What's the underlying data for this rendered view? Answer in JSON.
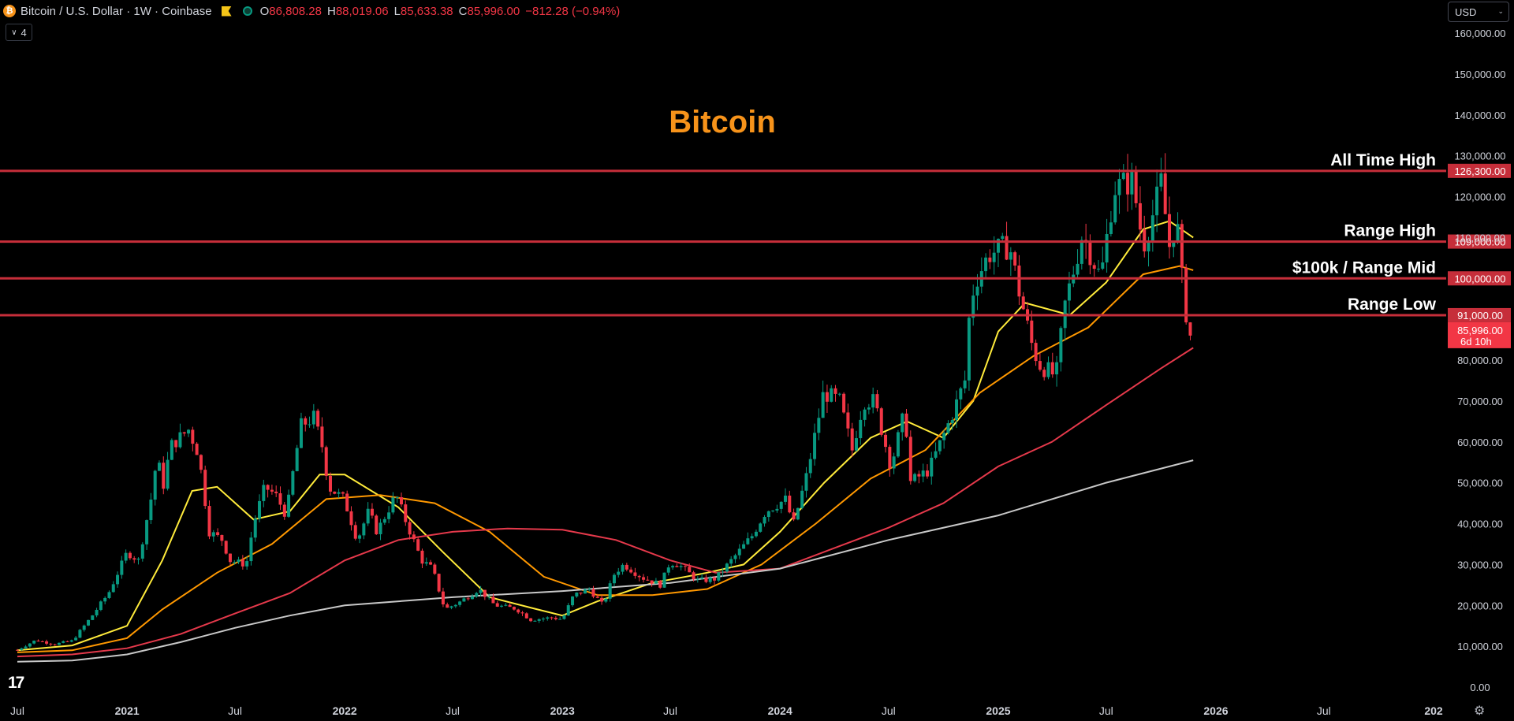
{
  "header": {
    "symbol": "Bitcoin / U.S. Dollar · 1W · Coinbase",
    "symbol_icon": "bitcoin-icon",
    "flag_icon": "flag-icon",
    "status_icon": "market-status-icon",
    "ohlc": [
      {
        "key": "O",
        "value": "86,808.28"
      },
      {
        "key": "H",
        "value": "88,019.06"
      },
      {
        "key": "L",
        "value": "85,633.38"
      },
      {
        "key": "C",
        "value": "85,996.00"
      }
    ],
    "change": "−812.28 (−0.94%)",
    "indicator_count": "4",
    "indicator_toggle_icon": "chevron-down-icon"
  },
  "currency": {
    "label": "USD",
    "icon": "chevron-down-icon"
  },
  "colors": {
    "up": "#089981",
    "down": "#f23645",
    "title": "#f7931a",
    "level": "#c62e3a"
  },
  "chart_data": {
    "type": "candlestick",
    "title": "Bitcoin",
    "ylim": [
      0,
      165000
    ],
    "y_ticks": [
      {
        "value": 0,
        "label": "0.00"
      },
      {
        "value": 10000,
        "label": "10,000.00"
      },
      {
        "value": 20000,
        "label": "20,000.00"
      },
      {
        "value": 30000,
        "label": "30,000.00"
      },
      {
        "value": 40000,
        "label": "40,000.00"
      },
      {
        "value": 50000,
        "label": "50,000.00"
      },
      {
        "value": 60000,
        "label": "60,000.00"
      },
      {
        "value": 70000,
        "label": "70,000.00"
      },
      {
        "value": 80000,
        "label": "80,000.00"
      },
      {
        "value": 110000,
        "label": "110,000.00"
      },
      {
        "value": 120000,
        "label": "120,000.00"
      },
      {
        "value": 130000,
        "label": "130,000.00"
      },
      {
        "value": 140000,
        "label": "140,000.00"
      },
      {
        "value": 150000,
        "label": "150,000.00"
      },
      {
        "value": 160000,
        "label": "160,000.00"
      }
    ],
    "x_ticks": [
      {
        "date": "2020-07-01",
        "label": "Jul",
        "bold": false
      },
      {
        "date": "2021-01-01",
        "label": "2021",
        "bold": true
      },
      {
        "date": "2021-07-01",
        "label": "Jul",
        "bold": false
      },
      {
        "date": "2022-01-01",
        "label": "2022",
        "bold": true
      },
      {
        "date": "2022-07-01",
        "label": "Jul",
        "bold": false
      },
      {
        "date": "2023-01-01",
        "label": "2023",
        "bold": true
      },
      {
        "date": "2023-07-01",
        "label": "Jul",
        "bold": false
      },
      {
        "date": "2024-01-01",
        "label": "2024",
        "bold": true
      },
      {
        "date": "2024-07-01",
        "label": "Jul",
        "bold": false
      },
      {
        "date": "2025-01-01",
        "label": "2025",
        "bold": true
      },
      {
        "date": "2025-07-01",
        "label": "Jul",
        "bold": false
      },
      {
        "date": "2026-01-01",
        "label": "2026",
        "bold": true
      },
      {
        "date": "2026-07-01",
        "label": "Jul",
        "bold": false
      },
      {
        "date": "2027-01-01",
        "label": "202",
        "bold": true
      }
    ],
    "x_range": [
      "2020-07-01",
      "2027-01-01"
    ],
    "levels": [
      {
        "name": "All Time High",
        "value": 126300,
        "label": "126,300.00"
      },
      {
        "name": "Range High",
        "value": 109000,
        "label": "109,000.00"
      },
      {
        "name": "$100k / Range Mid",
        "value": 100000,
        "label": "100,000.00"
      },
      {
        "name": "Range Low",
        "value": 91000,
        "label": "91,000.00"
      }
    ],
    "last_price": {
      "value": 85996,
      "label": "85,996.00",
      "countdown": "6d 10h"
    },
    "price_path": [
      [
        "2020-07-01",
        9100
      ],
      [
        "2020-08-01",
        11500
      ],
      [
        "2020-09-01",
        10500
      ],
      [
        "2020-10-01",
        11300
      ],
      [
        "2020-11-01",
        17000
      ],
      [
        "2020-12-01",
        23000
      ],
      [
        "2021-01-01",
        33000
      ],
      [
        "2021-01-20",
        31000
      ],
      [
        "2021-02-10",
        46000
      ],
      [
        "2021-02-21",
        57000
      ],
      [
        "2021-03-01",
        48000
      ],
      [
        "2021-03-15",
        59000
      ],
      [
        "2021-04-14",
        63000
      ],
      [
        "2021-05-01",
        57000
      ],
      [
        "2021-05-19",
        38000
      ],
      [
        "2021-06-10",
        36000
      ],
      [
        "2021-06-22",
        31000
      ],
      [
        "2021-07-20",
        30000
      ],
      [
        "2021-08-01",
        40000
      ],
      [
        "2021-08-20",
        49000
      ],
      [
        "2021-09-07",
        47000
      ],
      [
        "2021-09-25",
        42000
      ],
      [
        "2021-10-10",
        56000
      ],
      [
        "2021-10-20",
        64000
      ],
      [
        "2021-11-10",
        66000
      ],
      [
        "2021-11-28",
        57000
      ],
      [
        "2021-12-04",
        49000
      ],
      [
        "2021-12-31",
        46000
      ],
      [
        "2022-01-22",
        36000
      ],
      [
        "2022-02-10",
        43000
      ],
      [
        "2022-02-24",
        38000
      ],
      [
        "2022-03-28",
        47000
      ],
      [
        "2022-04-15",
        40000
      ],
      [
        "2022-05-10",
        31000
      ],
      [
        "2022-05-28",
        29000
      ],
      [
        "2022-06-18",
        19000
      ],
      [
        "2022-07-15",
        21000
      ],
      [
        "2022-08-14",
        24000
      ],
      [
        "2022-09-10",
        20000
      ],
      [
        "2022-10-15",
        19200
      ],
      [
        "2022-11-09",
        16500
      ],
      [
        "2022-12-15",
        17000
      ],
      [
        "2023-01-01",
        16600
      ],
      [
        "2023-01-20",
        22500
      ],
      [
        "2023-02-15",
        24000
      ],
      [
        "2023-03-10",
        20000
      ],
      [
        "2023-03-30",
        28000
      ],
      [
        "2023-04-14",
        30000
      ],
      [
        "2023-05-15",
        26800
      ],
      [
        "2023-06-15",
        25000
      ],
      [
        "2023-06-30",
        30500
      ],
      [
        "2023-07-15",
        30000
      ],
      [
        "2023-08-17",
        26000
      ],
      [
        "2023-09-15",
        26500
      ],
      [
        "2023-10-23",
        33000
      ],
      [
        "2023-11-15",
        37000
      ],
      [
        "2023-12-08",
        43000
      ],
      [
        "2024-01-11",
        46000
      ],
      [
        "2024-01-23",
        39500
      ],
      [
        "2024-02-15",
        52000
      ],
      [
        "2024-03-14",
        72000
      ],
      [
        "2024-04-10",
        70000
      ],
      [
        "2024-05-01",
        58000
      ],
      [
        "2024-05-20",
        70000
      ],
      [
        "2024-06-07",
        70000
      ],
      [
        "2024-07-05",
        54000
      ],
      [
        "2024-07-29",
        68000
      ],
      [
        "2024-08-05",
        50000
      ],
      [
        "2024-09-06",
        53000
      ],
      [
        "2024-10-14",
        66000
      ],
      [
        "2024-11-06",
        75000
      ],
      [
        "2024-11-13",
        90000
      ],
      [
        "2024-11-22",
        99000
      ],
      [
        "2024-12-17",
        106000
      ],
      [
        "2025-01-20",
        108000
      ],
      [
        "2025-02-03",
        98000
      ],
      [
        "2025-02-26",
        84000
      ],
      [
        "2025-03-10",
        79000
      ],
      [
        "2025-04-08",
        76000
      ],
      [
        "2025-04-22",
        93000
      ],
      [
        "2025-05-09",
        103000
      ],
      [
        "2025-05-22",
        111000
      ],
      [
        "2025-06-22",
        100000
      ],
      [
        "2025-07-14",
        122000
      ],
      [
        "2025-08-14",
        124000
      ],
      [
        "2025-09-01",
        108000
      ],
      [
        "2025-09-20",
        117000
      ],
      [
        "2025-10-06",
        126300
      ],
      [
        "2025-10-10",
        105000
      ],
      [
        "2025-10-27",
        115000
      ],
      [
        "2025-11-04",
        101000
      ],
      [
        "2025-11-21",
        81000
      ],
      [
        "2025-11-24",
        86000
      ]
    ],
    "moving_averages": [
      {
        "name": "MA short",
        "color": "#ffeb3b",
        "points": [
          [
            "2020-07-01",
            9000
          ],
          [
            "2020-10-01",
            10200
          ],
          [
            "2021-01-01",
            15000
          ],
          [
            "2021-03-01",
            31000
          ],
          [
            "2021-04-20",
            48000
          ],
          [
            "2021-06-01",
            49000
          ],
          [
            "2021-08-01",
            41000
          ],
          [
            "2021-10-01",
            43000
          ],
          [
            "2021-11-20",
            52000
          ],
          [
            "2022-01-01",
            52000
          ],
          [
            "2022-04-01",
            44000
          ],
          [
            "2022-06-15",
            33000
          ],
          [
            "2022-09-01",
            22000
          ],
          [
            "2022-11-15",
            19200
          ],
          [
            "2023-01-01",
            17500
          ],
          [
            "2023-03-01",
            21000
          ],
          [
            "2023-06-01",
            25500
          ],
          [
            "2023-09-01",
            28000
          ],
          [
            "2023-11-01",
            30000
          ],
          [
            "2024-01-01",
            38000
          ],
          [
            "2024-03-15",
            50000
          ],
          [
            "2024-06-01",
            61000
          ],
          [
            "2024-08-01",
            65000
          ],
          [
            "2024-10-01",
            61000
          ],
          [
            "2024-11-20",
            70000
          ],
          [
            "2025-01-01",
            87000
          ],
          [
            "2025-02-15",
            94000
          ],
          [
            "2025-05-01",
            91000
          ],
          [
            "2025-07-01",
            99000
          ],
          [
            "2025-09-01",
            112000
          ],
          [
            "2025-10-15",
            114000
          ],
          [
            "2025-11-24",
            110000
          ]
        ]
      },
      {
        "name": "MA medium",
        "color": "#ff9800",
        "points": [
          [
            "2020-07-01",
            8500
          ],
          [
            "2020-10-01",
            9000
          ],
          [
            "2021-01-01",
            12000
          ],
          [
            "2021-03-01",
            19000
          ],
          [
            "2021-06-01",
            28000
          ],
          [
            "2021-09-01",
            35000
          ],
          [
            "2021-12-01",
            46000
          ],
          [
            "2022-03-01",
            47000
          ],
          [
            "2022-06-01",
            45000
          ],
          [
            "2022-09-01",
            38000
          ],
          [
            "2022-12-01",
            27000
          ],
          [
            "2023-03-01",
            22500
          ],
          [
            "2023-06-01",
            22500
          ],
          [
            "2023-09-01",
            24000
          ],
          [
            "2023-12-01",
            30000
          ],
          [
            "2024-03-01",
            40000
          ],
          [
            "2024-06-01",
            51000
          ],
          [
            "2024-09-01",
            58000
          ],
          [
            "2024-12-01",
            72000
          ],
          [
            "2025-03-01",
            81000
          ],
          [
            "2025-06-01",
            88000
          ],
          [
            "2025-09-01",
            101000
          ],
          [
            "2025-11-01",
            103000
          ],
          [
            "2025-11-24",
            102000
          ]
        ]
      },
      {
        "name": "MA long",
        "color": "#e5394b",
        "points": [
          [
            "2020-07-01",
            7500
          ],
          [
            "2020-10-01",
            8000
          ],
          [
            "2021-01-01",
            9500
          ],
          [
            "2021-04-01",
            13000
          ],
          [
            "2021-07-01",
            18000
          ],
          [
            "2021-10-01",
            23000
          ],
          [
            "2022-01-01",
            31000
          ],
          [
            "2022-04-01",
            36000
          ],
          [
            "2022-07-01",
            38000
          ],
          [
            "2022-10-01",
            38800
          ],
          [
            "2023-01-01",
            38500
          ],
          [
            "2023-04-01",
            36000
          ],
          [
            "2023-07-01",
            31000
          ],
          [
            "2023-09-15",
            28000
          ],
          [
            "2024-01-01",
            29000
          ],
          [
            "2024-04-01",
            34000
          ],
          [
            "2024-07-01",
            39000
          ],
          [
            "2024-10-01",
            45000
          ],
          [
            "2025-01-01",
            54000
          ],
          [
            "2025-04-01",
            60000
          ],
          [
            "2025-07-01",
            69000
          ],
          [
            "2025-10-01",
            78000
          ],
          [
            "2025-11-24",
            83000
          ]
        ]
      },
      {
        "name": "MA 200",
        "color": "#c8c8c8",
        "points": [
          [
            "2020-07-01",
            6200
          ],
          [
            "2020-10-01",
            6500
          ],
          [
            "2021-01-01",
            8000
          ],
          [
            "2021-04-01",
            11000
          ],
          [
            "2021-07-01",
            14500
          ],
          [
            "2021-10-01",
            17500
          ],
          [
            "2022-01-01",
            20000
          ],
          [
            "2022-07-01",
            22000
          ],
          [
            "2023-01-01",
            23500
          ],
          [
            "2023-07-01",
            25500
          ],
          [
            "2024-01-01",
            29000
          ],
          [
            "2024-07-01",
            36000
          ],
          [
            "2025-01-01",
            42000
          ],
          [
            "2025-07-01",
            50000
          ],
          [
            "2025-11-24",
            55500
          ]
        ]
      }
    ]
  }
}
